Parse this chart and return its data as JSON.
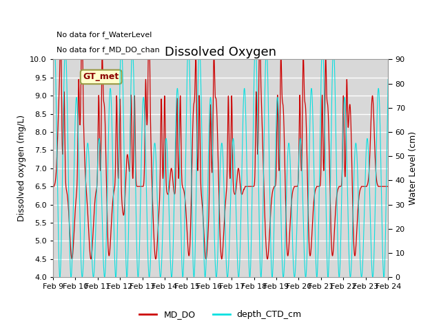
{
  "title": "Dissolved Oxygen",
  "ylabel_left": "Dissolved oxygen (mg/L)",
  "ylabel_right": "Water Level (cm)",
  "ylim_left": [
    4.0,
    10.0
  ],
  "ylim_right": [
    0,
    90
  ],
  "plot_bg_color": "#d8d8d8",
  "line1_color": "#cc0000",
  "line2_color": "#00e0e0",
  "line1_label": "MD_DO",
  "line2_label": "depth_CTD_cm",
  "annotation_text1": "No data for f_WaterLevel",
  "annotation_text2": "No data for f_MD_DO_chan",
  "box_label": "GT_met",
  "box_color": "#ffffcc",
  "box_edge_color": "#999944",
  "x_tick_labels": [
    "Feb 9",
    "Feb 10",
    "Feb 11",
    "Feb 12",
    "Feb 13",
    "Feb 14",
    "Feb 15",
    "Feb 16",
    "Feb 17",
    "Feb 18",
    "Feb 19",
    "Feb 20",
    "Feb 21",
    "Feb 22",
    "Feb 23",
    "Feb 24"
  ],
  "yticks_left": [
    4.0,
    4.5,
    5.0,
    5.5,
    6.0,
    6.5,
    7.0,
    7.5,
    8.0,
    8.5,
    9.0,
    9.5,
    10.0
  ],
  "yticks_right": [
    0,
    10,
    20,
    30,
    40,
    50,
    60,
    70,
    80,
    90
  ],
  "title_fontsize": 13,
  "label_fontsize": 9,
  "tick_fontsize": 8
}
